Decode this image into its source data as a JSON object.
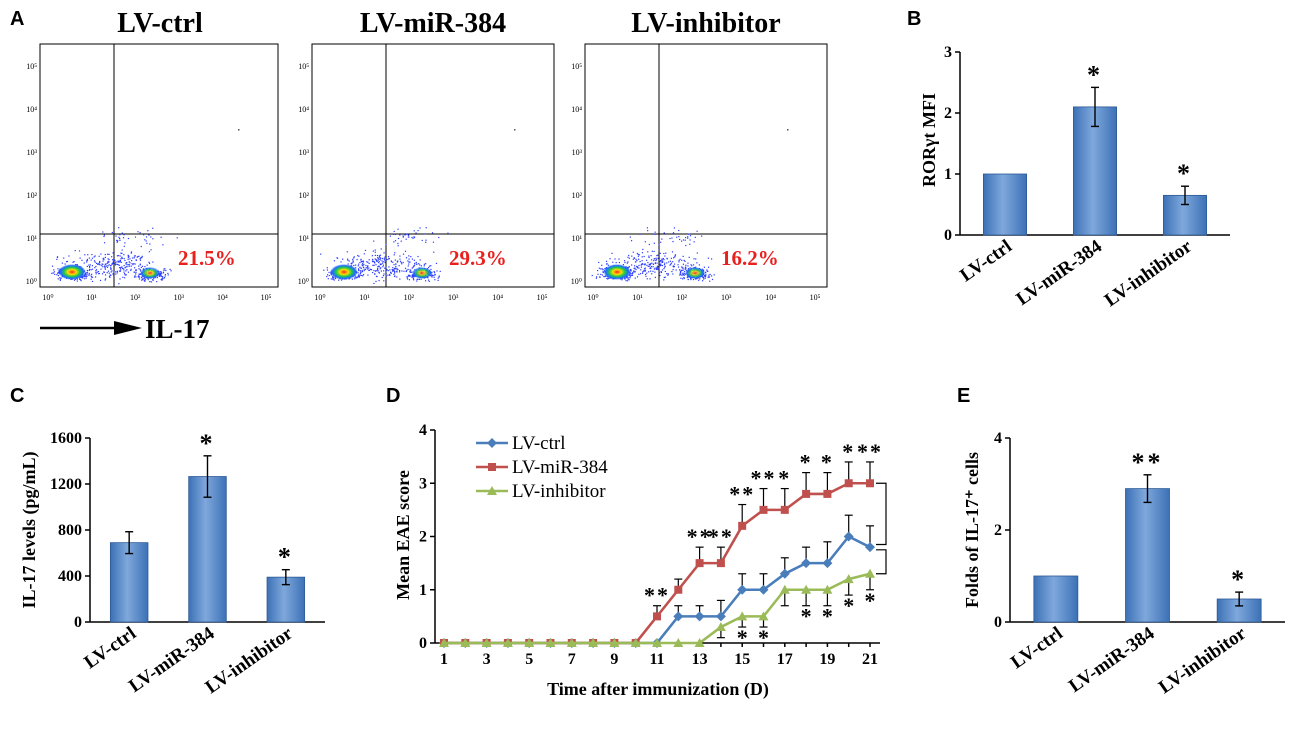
{
  "panel_letters": [
    "A",
    "B",
    "C",
    "D",
    "E"
  ],
  "colors": {
    "bar_fill": "#3c71b6",
    "bar_highlight": "#7fa8dc",
    "ctrl": "#4a7ebb",
    "mir384": "#c0504d",
    "inhibitor": "#9bbb59",
    "percent_text": "#e8211f"
  },
  "flow": {
    "panels": [
      {
        "title": "LV-ctrl",
        "percent": "21.5%"
      },
      {
        "title": "LV-miR-384",
        "percent": "29.3%"
      },
      {
        "title": "LV-inhibitor",
        "percent": "16.2%"
      }
    ],
    "x_axis_label": "IL-17"
  },
  "chart_data": [
    {
      "panel": "B",
      "type": "bar",
      "categories": [
        "LV-ctrl",
        "LV-miR-384",
        "LV-inhibitor"
      ],
      "values": [
        1.0,
        2.1,
        0.65
      ],
      "errors": [
        0,
        0.32,
        0.15
      ],
      "significance": [
        "",
        "*",
        "*"
      ],
      "ylabel": "RORγt MFI",
      "ylim": [
        0,
        3
      ],
      "yticks": [
        "0",
        "1",
        "2",
        "3"
      ]
    },
    {
      "panel": "C",
      "type": "bar",
      "categories": [
        "LV-ctrl",
        "LV-miR-384",
        "LV-inhibitor"
      ],
      "values": [
        690,
        1265,
        390
      ],
      "errors": [
        95,
        180,
        65
      ],
      "significance": [
        "",
        "*",
        "*"
      ],
      "ylabel": "IL-17 levels (pg/mL)",
      "ylim": [
        0,
        1600
      ],
      "yticks": [
        "0",
        "400",
        "800",
        "1200",
        "1600"
      ]
    },
    {
      "panel": "D",
      "type": "line",
      "x": [
        1,
        2,
        3,
        4,
        5,
        6,
        7,
        8,
        9,
        10,
        11,
        12,
        13,
        14,
        15,
        16,
        17,
        18,
        19,
        20,
        21
      ],
      "xticks": [
        "1",
        "3",
        "5",
        "7",
        "9",
        "11",
        "13",
        "15",
        "17",
        "19",
        "21"
      ],
      "series": [
        {
          "name": "LV-ctrl",
          "values": [
            0,
            0,
            0,
            0,
            0,
            0,
            0,
            0,
            0,
            0,
            0,
            0.5,
            0.5,
            0.5,
            1.0,
            1.0,
            1.3,
            1.5,
            1.5,
            2.0,
            1.8
          ],
          "errors": [
            0,
            0,
            0,
            0,
            0,
            0,
            0,
            0,
            0,
            0,
            0,
            0.2,
            0.2,
            0.3,
            0.3,
            0.3,
            0.3,
            0.3,
            0.4,
            0.4,
            0.4
          ]
        },
        {
          "name": "LV-miR-384",
          "values": [
            0,
            0,
            0,
            0,
            0,
            0,
            0,
            0,
            0,
            0,
            0.5,
            1.0,
            1.5,
            1.5,
            2.2,
            2.5,
            2.5,
            2.8,
            2.8,
            3.0,
            3.0
          ],
          "errors": [
            0,
            0,
            0,
            0,
            0,
            0,
            0,
            0,
            0,
            0,
            0.2,
            0.2,
            0.3,
            0.3,
            0.4,
            0.4,
            0.4,
            0.4,
            0.4,
            0.4,
            0.4
          ]
        },
        {
          "name": "LV-inhibitor",
          "values": [
            0,
            0,
            0,
            0,
            0,
            0,
            0,
            0,
            0,
            0,
            0,
            0,
            0,
            0.3,
            0.5,
            0.5,
            1.0,
            1.0,
            1.0,
            1.2,
            1.3
          ],
          "errors": [
            0,
            0,
            0,
            0,
            0,
            0,
            0,
            0,
            0,
            0,
            0,
            0,
            0,
            0.2,
            0.2,
            0.2,
            0.3,
            0.3,
            0.3,
            0.3,
            0.3
          ]
        }
      ],
      "significance_above": [
        {
          "x": 11,
          "label": "**"
        },
        {
          "x": 13,
          "label": "**"
        },
        {
          "x": 14,
          "label": "**"
        },
        {
          "x": 15,
          "label": "**"
        },
        {
          "x": 16,
          "label": "**"
        },
        {
          "x": 17,
          "label": "*"
        },
        {
          "x": 18,
          "label": "*"
        },
        {
          "x": 19,
          "label": "*"
        },
        {
          "x": 20,
          "label": "*"
        },
        {
          "x": 21,
          "label": "**"
        }
      ],
      "significance_below": [
        {
          "x": 15,
          "label": "*"
        },
        {
          "x": 16,
          "label": "*"
        },
        {
          "x": 18,
          "label": "*"
        },
        {
          "x": 19,
          "label": "*"
        },
        {
          "x": 20,
          "label": "*"
        },
        {
          "x": 21,
          "label": "*"
        }
      ],
      "xlabel": "Time after immunization (D)",
      "ylabel": "Mean EAE score",
      "ylim": [
        0,
        4
      ],
      "yticks": [
        "0",
        "1",
        "2",
        "3",
        "4"
      ]
    },
    {
      "panel": "E",
      "type": "bar",
      "categories": [
        "LV-ctrl",
        "LV-miR-384",
        "LV-inhibitor"
      ],
      "values": [
        1.0,
        2.9,
        0.5
      ],
      "errors": [
        0,
        0.3,
        0.15
      ],
      "significance": [
        "",
        "**",
        "*"
      ],
      "ylabel": "Folds of IL-17⁺ cells",
      "ylim": [
        0,
        4
      ],
      "yticks": [
        "0",
        "2",
        "4"
      ]
    }
  ]
}
